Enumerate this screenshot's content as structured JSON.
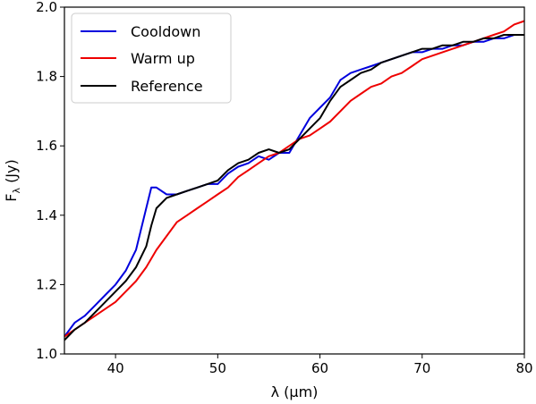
{
  "chart_data": {
    "type": "line",
    "title": "",
    "xlabel": "λ (μm)",
    "ylabel_main": "F",
    "ylabel_sub": "λ",
    "ylabel_unit": " (Jy)",
    "xlim": [
      35,
      80
    ],
    "ylim": [
      1.0,
      2.0
    ],
    "xticks": [
      40,
      50,
      60,
      70,
      80
    ],
    "yticks": [
      1.0,
      1.2,
      1.4,
      1.6,
      1.8,
      2.0
    ],
    "grid": false,
    "legend_position": "upper-left",
    "series": [
      {
        "name": "Cooldown",
        "color": "#0000dd",
        "x": [
          35,
          36,
          37,
          38,
          39,
          40,
          41,
          42,
          42.5,
          43,
          43.5,
          44,
          45,
          46,
          47,
          48,
          49,
          50,
          51,
          52,
          53,
          54,
          55,
          56,
          57,
          58,
          59,
          60,
          61,
          62,
          63,
          64,
          65,
          66,
          67,
          68,
          69,
          70,
          71,
          72,
          73,
          74,
          75,
          76,
          77,
          78,
          79,
          80
        ],
        "y": [
          1.05,
          1.09,
          1.11,
          1.14,
          1.17,
          1.2,
          1.24,
          1.3,
          1.36,
          1.42,
          1.48,
          1.48,
          1.46,
          1.46,
          1.47,
          1.48,
          1.49,
          1.49,
          1.52,
          1.54,
          1.55,
          1.57,
          1.56,
          1.58,
          1.58,
          1.63,
          1.68,
          1.71,
          1.74,
          1.79,
          1.81,
          1.82,
          1.83,
          1.84,
          1.85,
          1.86,
          1.87,
          1.87,
          1.88,
          1.88,
          1.89,
          1.89,
          1.9,
          1.9,
          1.91,
          1.91,
          1.92,
          1.92
        ]
      },
      {
        "name": "Warm up",
        "color": "#ee0000",
        "x": [
          35,
          36,
          37,
          38,
          39,
          40,
          41,
          42,
          43,
          44,
          45,
          46,
          47,
          48,
          49,
          50,
          51,
          52,
          53,
          54,
          55,
          56,
          57,
          58,
          59,
          60,
          61,
          62,
          63,
          64,
          65,
          66,
          67,
          68,
          69,
          70,
          71,
          72,
          73,
          74,
          75,
          76,
          77,
          78,
          79,
          80
        ],
        "y": [
          1.05,
          1.07,
          1.09,
          1.11,
          1.13,
          1.15,
          1.18,
          1.21,
          1.25,
          1.3,
          1.34,
          1.38,
          1.4,
          1.42,
          1.44,
          1.46,
          1.48,
          1.51,
          1.53,
          1.55,
          1.57,
          1.58,
          1.6,
          1.62,
          1.63,
          1.65,
          1.67,
          1.7,
          1.73,
          1.75,
          1.77,
          1.78,
          1.8,
          1.81,
          1.83,
          1.85,
          1.86,
          1.87,
          1.88,
          1.89,
          1.9,
          1.91,
          1.92,
          1.93,
          1.95,
          1.96
        ]
      },
      {
        "name": "Reference",
        "color": "#000000",
        "x": [
          35,
          36,
          37,
          38,
          39,
          40,
          41,
          42,
          43,
          43.5,
          44,
          45,
          46,
          47,
          48,
          49,
          50,
          51,
          52,
          53,
          54,
          55,
          56,
          57,
          58,
          59,
          60,
          61,
          62,
          63,
          64,
          65,
          66,
          67,
          68,
          69,
          70,
          71,
          72,
          73,
          74,
          75,
          76,
          77,
          78,
          79,
          80
        ],
        "y": [
          1.04,
          1.07,
          1.09,
          1.12,
          1.15,
          1.18,
          1.21,
          1.25,
          1.31,
          1.37,
          1.42,
          1.45,
          1.46,
          1.47,
          1.48,
          1.49,
          1.5,
          1.53,
          1.55,
          1.56,
          1.58,
          1.59,
          1.58,
          1.59,
          1.62,
          1.65,
          1.68,
          1.73,
          1.77,
          1.79,
          1.81,
          1.82,
          1.84,
          1.85,
          1.86,
          1.87,
          1.88,
          1.88,
          1.89,
          1.89,
          1.9,
          1.9,
          1.91,
          1.91,
          1.92,
          1.92,
          1.92
        ]
      }
    ]
  }
}
